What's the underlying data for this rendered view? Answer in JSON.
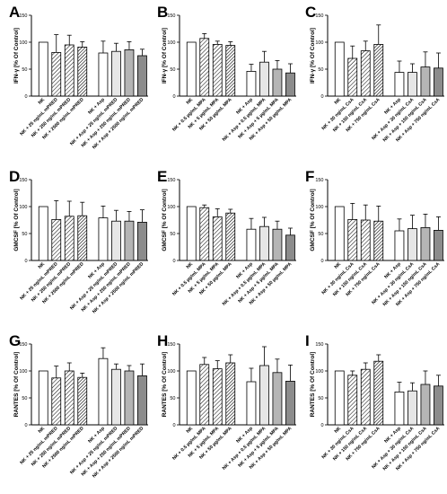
{
  "figure": {
    "panel_letters": [
      "A",
      "B",
      "C",
      "D",
      "E",
      "F",
      "G",
      "H",
      "I"
    ]
  },
  "chart_data": [
    {
      "panel": "A",
      "type": "bar",
      "ylabel": "IFN-γ [% Of Control]",
      "ylim": [
        0,
        150
      ],
      "yticks": [
        0,
        50,
        100,
        150
      ],
      "categories": [
        "NK",
        "NK + 25 ng/mL mPRED",
        "NK + 250 ng/mL mPRED",
        "NK + 2500 ng/mL mPRED",
        "NK + Asp",
        "NK + Asp + 25 ng/mL mPRED",
        "NK + Asp + 250 ng/mL mPRED",
        "NK + Asp + 2500 ng/mL mPRED"
      ],
      "values": [
        100,
        81,
        95,
        91,
        80,
        83,
        86,
        75
      ],
      "errors": [
        0,
        33,
        18,
        10,
        22,
        15,
        15,
        12
      ]
    },
    {
      "panel": "B",
      "type": "bar",
      "ylabel": "IFN-γ [% Of Control]",
      "ylim": [
        0,
        150
      ],
      "yticks": [
        0,
        50,
        100,
        150
      ],
      "categories": [
        "NK",
        "NK + 0.5 µg/mL MPA",
        "NK + 5 µg/mL MPA",
        "NK + 50 µg/mL MPA",
        "NK + Asp",
        "NK + Asp + 0.5 µg/mL MPA",
        "NK + Asp + 5 µg/mL MPA",
        "NK + Asp + 50 µg/mL MPA"
      ],
      "values": [
        100,
        107,
        96,
        94,
        46,
        63,
        50,
        43
      ],
      "errors": [
        0,
        9,
        6,
        7,
        13,
        20,
        16,
        17
      ]
    },
    {
      "panel": "C",
      "type": "bar",
      "ylabel": "IFN-γ [% Of Control]",
      "ylim": [
        0,
        150
      ],
      "yticks": [
        0,
        50,
        100,
        150
      ],
      "categories": [
        "NK",
        "NK + 30 ng/mL CsA",
        "NK + 150 ng/mL CsA",
        "NK + 750 ng/mL CsA",
        "NK + Asp",
        "NK + Asp + 30 ng/mL CsA",
        "NK + Asp + 150 ng/mL CsA",
        "NK + Asp + 750 ng/mL CsA"
      ],
      "values": [
        100,
        70,
        84,
        96,
        44,
        44,
        54,
        52
      ],
      "errors": [
        0,
        23,
        18,
        36,
        21,
        16,
        28,
        28
      ]
    },
    {
      "panel": "D",
      "type": "bar",
      "ylabel": "GMCSF [% Of Control]",
      "ylim": [
        0,
        150
      ],
      "yticks": [
        0,
        50,
        100,
        150
      ],
      "categories": [
        "NK",
        "NK + 25 ng/mL mPRED",
        "NK + 250 ng/mL mPRED",
        "NK + 2500 ng/mL mPRED",
        "NK + Asp",
        "NK + Asp + 25 ng/mL mPRED",
        "NK + Asp + 250 ng/mL mPRED",
        "NK + Asp + 2500 ng/mL mPRED"
      ],
      "values": [
        100,
        76,
        82,
        83,
        79,
        73,
        73,
        71
      ],
      "errors": [
        0,
        35,
        28,
        25,
        22,
        20,
        18,
        23
      ]
    },
    {
      "panel": "E",
      "type": "bar",
      "ylabel": "GMCSF [% Of Control]",
      "ylim": [
        0,
        150
      ],
      "yticks": [
        0,
        50,
        100,
        150
      ],
      "categories": [
        "NK",
        "NK + 0.5 µg/mL MPA",
        "NK + 5 µg/mL MPA",
        "NK + 50 µg/mL MPA",
        "NK + Asp",
        "NK + Asp + 0.5 µg/mL MPA",
        "NK + Asp + 5 µg/mL MPA",
        "NK + Asp + 50 µg/mL MPA"
      ],
      "values": [
        100,
        98,
        81,
        88,
        58,
        63,
        58,
        47
      ],
      "errors": [
        0,
        5,
        15,
        7,
        20,
        17,
        15,
        13
      ]
    },
    {
      "panel": "F",
      "type": "bar",
      "ylabel": "GMCSF [% Of Control]",
      "ylim": [
        0,
        150
      ],
      "yticks": [
        0,
        50,
        100,
        150
      ],
      "categories": [
        "NK",
        "NK + 30 ng/mL CsA",
        "NK + 150 ng/mL CsA",
        "NK + 750 ng/mL CsA",
        "NK + Asp",
        "NK + Asp + 30 ng/mL CsA",
        "NK + Asp + 150 ng/mL CsA",
        "NK + Asp + 750 ng/mL CsA"
      ],
      "values": [
        100,
        76,
        75,
        73,
        55,
        59,
        61,
        56
      ],
      "errors": [
        0,
        30,
        28,
        28,
        22,
        25,
        25,
        25
      ]
    },
    {
      "panel": "G",
      "type": "bar",
      "ylabel": "RANTES [% Of Control]",
      "ylim": [
        0,
        150
      ],
      "yticks": [
        0,
        50,
        100,
        150
      ],
      "categories": [
        "NK",
        "NK + 25 ng/mL mPRED",
        "NK + 250 ng/mL mPRED",
        "NK + 2500 ng/mL mPRED",
        "NK + Asp",
        "NK + Asp + 25 ng/mL mPRED",
        "NK + Asp + 250 ng/mL mPRED",
        "NK + Asp + 2500 ng/mL mPRED"
      ],
      "values": [
        100,
        87,
        100,
        88,
        123,
        103,
        100,
        91
      ],
      "errors": [
        0,
        22,
        15,
        8,
        20,
        10,
        10,
        22
      ]
    },
    {
      "panel": "H",
      "type": "bar",
      "ylabel": "RANTES [% Of Control]",
      "ylim": [
        0,
        150
      ],
      "yticks": [
        0,
        50,
        100,
        150
      ],
      "categories": [
        "NK",
        "NK + 0.5 µg/mL MPA",
        "NK + 5 µg/mL MPA",
        "NK + 50 µg/mL MPA",
        "NK + Asp",
        "NK + Asp + 0.5 µg/mL MPA",
        "NK + Asp + 5 µg/mL MPA",
        "NK + Asp + 50 µg/mL MPA"
      ],
      "values": [
        100,
        112,
        104,
        115,
        80,
        110,
        97,
        81
      ],
      "errors": [
        0,
        13,
        15,
        15,
        25,
        35,
        25,
        30
      ]
    },
    {
      "panel": "I",
      "type": "bar",
      "ylabel": "RANTES [% Of Control]",
      "ylim": [
        0,
        150
      ],
      "yticks": [
        0,
        50,
        100,
        150
      ],
      "categories": [
        "NK",
        "NK + 30 ng/mL CsA",
        "NK + 150 ng/mL CsA",
        "NK + 750 ng/mL CsA",
        "NK + Asp",
        "NK + Asp + 30 ng/mL CsA",
        "NK + Asp + 150 ng/mL CsA",
        "NK + Asp + 750 ng/mL CsA"
      ],
      "values": [
        100,
        92,
        103,
        118,
        61,
        63,
        75,
        72
      ],
      "errors": [
        0,
        8,
        12,
        12,
        18,
        15,
        25,
        20
      ]
    }
  ]
}
